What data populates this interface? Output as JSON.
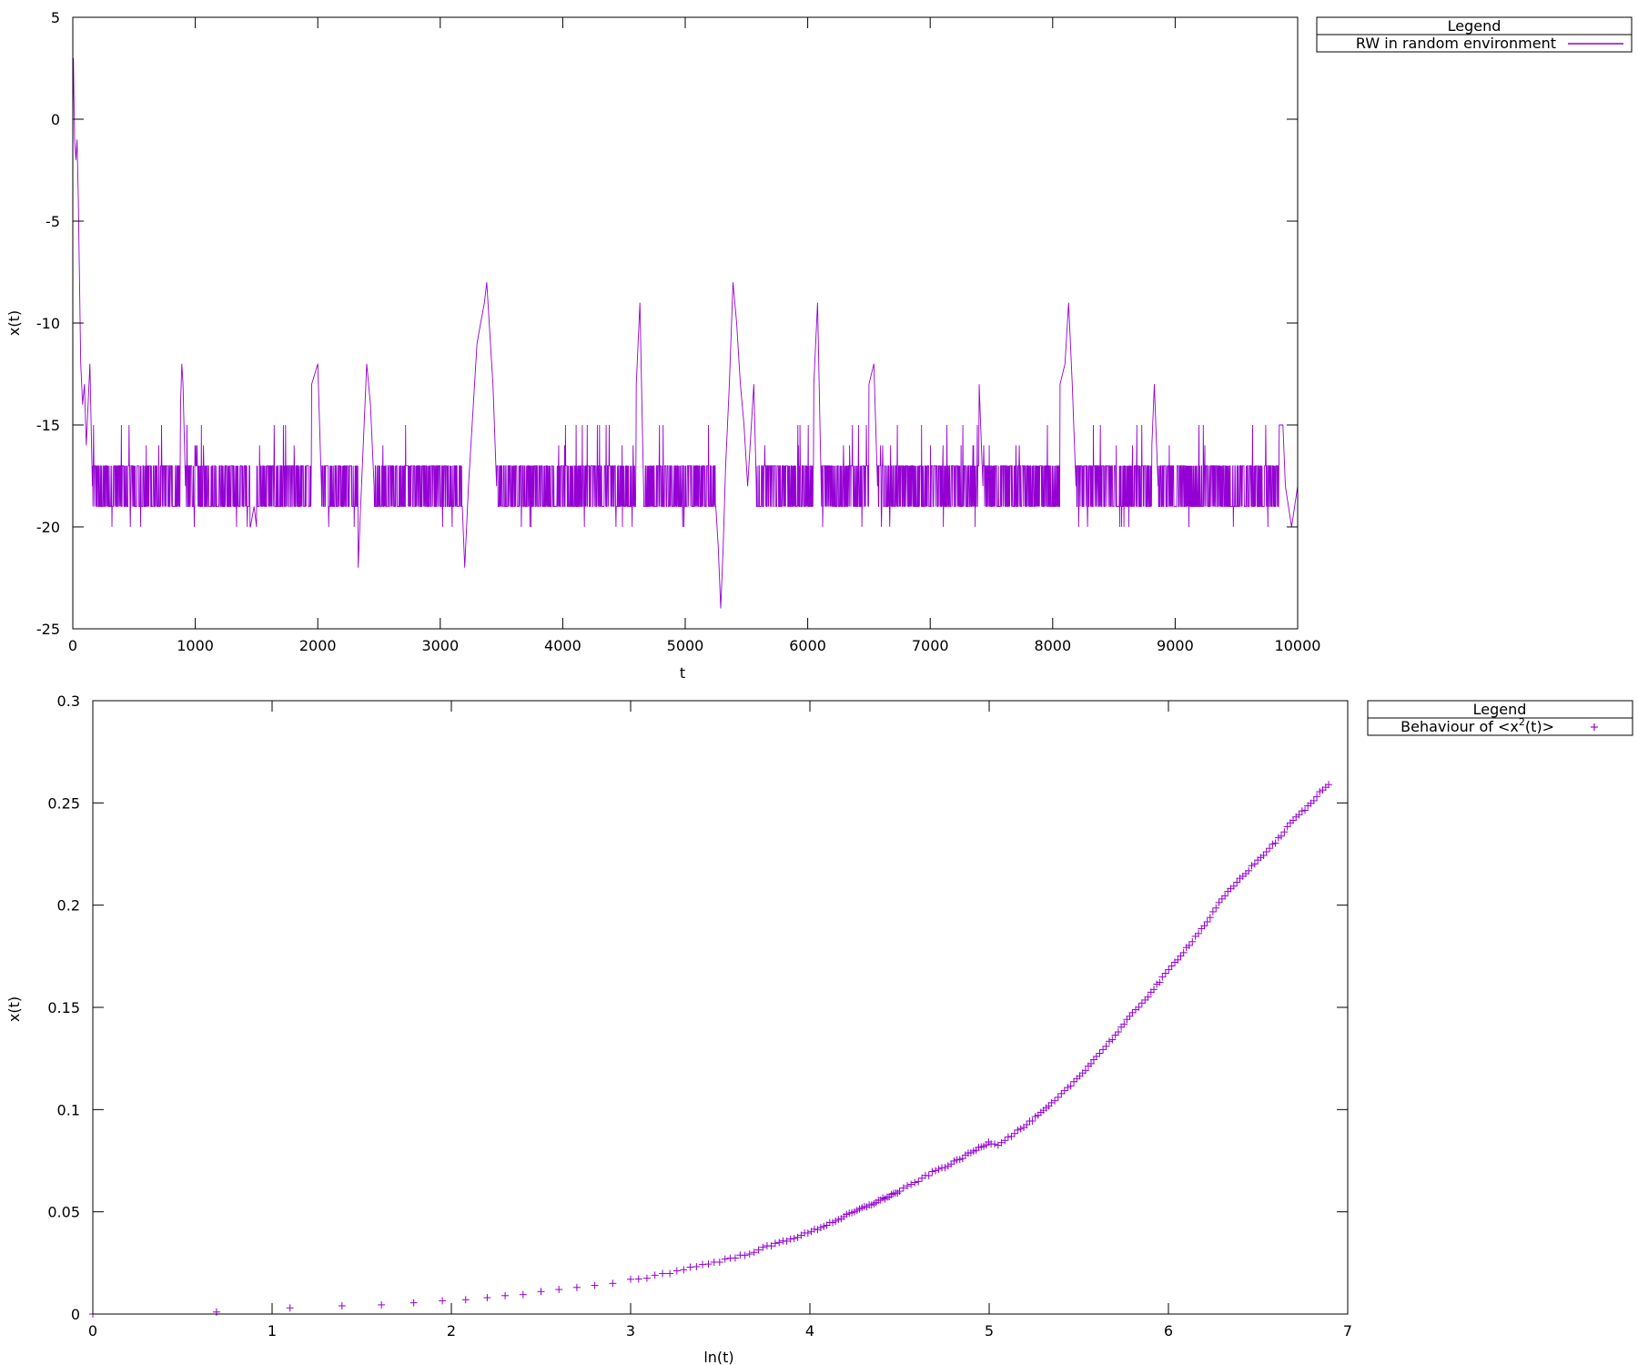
{
  "colors": {
    "series": "#9400d3",
    "axis": "#000000",
    "background": "#ffffff"
  },
  "chart_data": [
    {
      "type": "line",
      "title": "",
      "xlabel": "t",
      "ylabel": "x(t)",
      "xlim": [
        0,
        10000
      ],
      "ylim": [
        -25,
        5
      ],
      "xticks": [
        "0",
        "1000",
        "2000",
        "3000",
        "4000",
        "5000",
        "6000",
        "7000",
        "8000",
        "9000",
        "10000"
      ],
      "yticks": [
        "-25",
        "-20",
        "-15",
        "-10",
        "-5",
        "0",
        "5"
      ],
      "grid": false,
      "legend_position": "outside-top-right",
      "legend": {
        "title": "Legend",
        "entries": [
          "RW in random environment"
        ]
      },
      "series": [
        {
          "name": "RW in random environment",
          "baseline": [
            -19,
            -17
          ],
          "points": [
            [
              0,
              0
            ],
            [
              5,
              3
            ],
            [
              10,
              1
            ],
            [
              15,
              -1
            ],
            [
              25,
              -2
            ],
            [
              35,
              -1
            ],
            [
              45,
              -4
            ],
            [
              55,
              -8
            ],
            [
              65,
              -12
            ],
            [
              80,
              -14
            ],
            [
              95,
              -13
            ],
            [
              110,
              -16
            ],
            [
              125,
              -14
            ],
            [
              140,
              -12
            ],
            [
              160,
              -18
            ],
            [
              880,
              -14
            ],
            [
              890,
              -12
            ],
            [
              900,
              -13
            ],
            [
              920,
              -18
            ],
            [
              1450,
              -20
            ],
            [
              1480,
              -19
            ],
            [
              1500,
              -20
            ],
            [
              1950,
              -13
            ],
            [
              2000,
              -12
            ],
            [
              2030,
              -18
            ],
            [
              2330,
              -22
            ],
            [
              2350,
              -19
            ],
            [
              2400,
              -12
            ],
            [
              2430,
              -14
            ],
            [
              2460,
              -18
            ],
            [
              3180,
              -19
            ],
            [
              3200,
              -22
            ],
            [
              3230,
              -18
            ],
            [
              3280,
              -13
            ],
            [
              3300,
              -11
            ],
            [
              3330,
              -10
            ],
            [
              3360,
              -9
            ],
            [
              3380,
              -8
            ],
            [
              3400,
              -10
            ],
            [
              3430,
              -13
            ],
            [
              3460,
              -18
            ],
            [
              4200,
              -15
            ],
            [
              4300,
              -15
            ],
            [
              4600,
              -13
            ],
            [
              4630,
              -9
            ],
            [
              4660,
              -18
            ],
            [
              5250,
              -19
            ],
            [
              5270,
              -21
            ],
            [
              5290,
              -24
            ],
            [
              5310,
              -21
            ],
            [
              5330,
              -17
            ],
            [
              5360,
              -13
            ],
            [
              5390,
              -8
            ],
            [
              5420,
              -10
            ],
            [
              5450,
              -13
            ],
            [
              5480,
              -15
            ],
            [
              5510,
              -18
            ],
            [
              5560,
              -13
            ],
            [
              5580,
              -18
            ],
            [
              6050,
              -13
            ],
            [
              6080,
              -9
            ],
            [
              6110,
              -18
            ],
            [
              6500,
              -13
            ],
            [
              6540,
              -12
            ],
            [
              6570,
              -18
            ],
            [
              7400,
              -13
            ],
            [
              7430,
              -18
            ],
            [
              8060,
              -13
            ],
            [
              8100,
              -12
            ],
            [
              8130,
              -9
            ],
            [
              8160,
              -13
            ],
            [
              8190,
              -18
            ],
            [
              8810,
              -16
            ],
            [
              8830,
              -13
            ],
            [
              8860,
              -18
            ],
            [
              9850,
              -15
            ],
            [
              9880,
              -15
            ],
            [
              9900,
              -18
            ],
            [
              9950,
              -20
            ],
            [
              10000,
              -18
            ]
          ]
        }
      ]
    },
    {
      "type": "scatter",
      "title": "",
      "xlabel": "ln(t)",
      "ylabel": "x(t)",
      "xlim": [
        0,
        7
      ],
      "ylim": [
        0,
        0.3
      ],
      "xticks": [
        "0",
        "1",
        "2",
        "3",
        "4",
        "5",
        "6",
        "7"
      ],
      "yticks": [
        "0",
        "0.05",
        "0.1",
        "0.15",
        "0.2",
        "0.25",
        "0.3"
      ],
      "grid": false,
      "legend_position": "outside-top-right",
      "legend": {
        "title": "Legend",
        "entries": [
          "Behaviour of <x",
          "2",
          "(t)>"
        ]
      },
      "series": [
        {
          "name": "Behaviour of <x2(t)>",
          "marker": "+",
          "points": [
            [
              0,
              0
            ],
            [
              0.69,
              0.001
            ],
            [
              1.1,
              0.003
            ],
            [
              1.39,
              0.004
            ],
            [
              1.61,
              0.0045
            ],
            [
              1.79,
              0.0055
            ],
            [
              1.95,
              0.0065
            ],
            [
              2.08,
              0.007
            ],
            [
              2.2,
              0.008
            ],
            [
              2.3,
              0.009
            ],
            [
              2.4,
              0.0095
            ],
            [
              2.5,
              0.011
            ],
            [
              2.6,
              0.012
            ],
            [
              2.7,
              0.013
            ],
            [
              2.8,
              0.014
            ],
            [
              2.9,
              0.015
            ],
            [
              3.0,
              0.017
            ],
            [
              3.1,
              0.018
            ],
            [
              3.2,
              0.02
            ],
            [
              3.3,
              0.022
            ],
            [
              3.4,
              0.024
            ],
            [
              3.5,
              0.026
            ],
            [
              3.6,
              0.028
            ],
            [
              3.7,
              0.031
            ],
            [
              3.8,
              0.034
            ],
            [
              3.9,
              0.037
            ],
            [
              4.0,
              0.04
            ],
            [
              4.1,
              0.044
            ],
            [
              4.2,
              0.048
            ],
            [
              4.3,
              0.052
            ],
            [
              4.4,
              0.056
            ],
            [
              4.5,
              0.06
            ],
            [
              4.6,
              0.065
            ],
            [
              4.7,
              0.07
            ],
            [
              4.8,
              0.074
            ],
            [
              4.9,
              0.079
            ],
            [
              5.0,
              0.084
            ],
            [
              5.05,
              0.083
            ],
            [
              5.1,
              0.086
            ],
            [
              5.2,
              0.092
            ],
            [
              5.3,
              0.099
            ],
            [
              5.4,
              0.107
            ],
            [
              5.5,
              0.116
            ],
            [
              5.6,
              0.126
            ],
            [
              5.7,
              0.136
            ],
            [
              5.8,
              0.147
            ],
            [
              5.9,
              0.157
            ],
            [
              6.0,
              0.168
            ],
            [
              6.1,
              0.179
            ],
            [
              6.2,
              0.19
            ],
            [
              6.3,
              0.203
            ],
            [
              6.4,
              0.213
            ],
            [
              6.5,
              0.222
            ],
            [
              6.6,
              0.231
            ],
            [
              6.7,
              0.242
            ],
            [
              6.8,
              0.25
            ],
            [
              6.85,
              0.256
            ],
            [
              6.9,
              0.26
            ]
          ]
        }
      ]
    }
  ]
}
